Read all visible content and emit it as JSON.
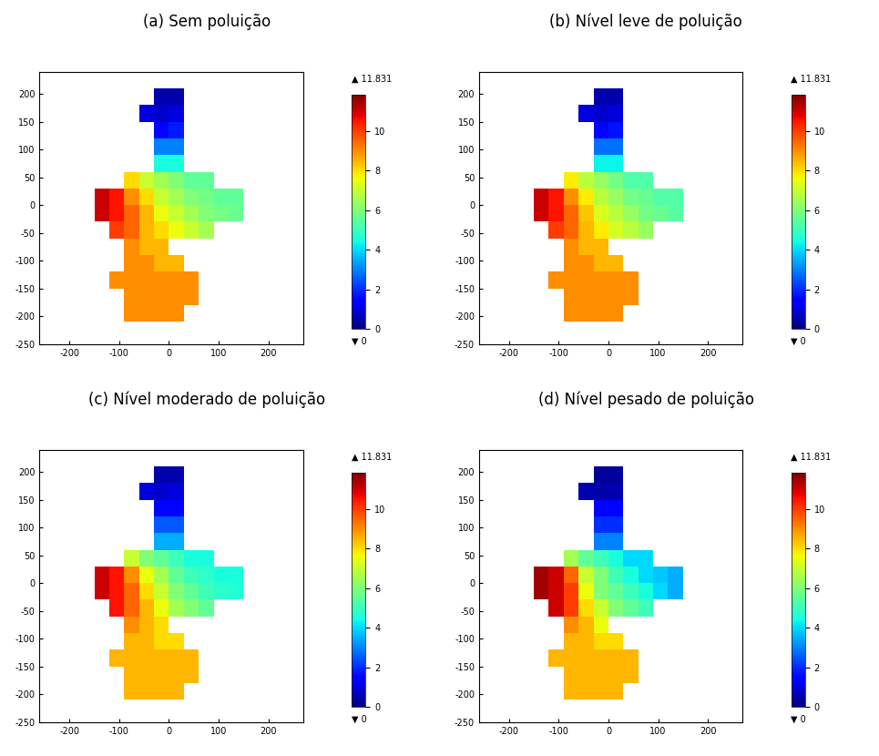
{
  "chart_data": [
    {
      "type": "heatmap",
      "title": "(a) Sem poluição",
      "xlim": [
        -260,
        270
      ],
      "ylim": [
        -250,
        240
      ],
      "xticks": [
        -200,
        -100,
        0,
        100,
        200
      ],
      "yticks": [
        -250,
        -200,
        -150,
        -100,
        -50,
        0,
        50,
        100,
        150,
        200
      ],
      "x_edges": [
        -150,
        -120,
        -90,
        -60,
        -30,
        0,
        30,
        60,
        90,
        120,
        150
      ],
      "y_edges": [
        -210,
        -180,
        -150,
        -120,
        -90,
        -60,
        -30,
        0,
        30,
        60,
        90,
        120,
        150,
        180,
        210
      ],
      "cells": [
        [
          null,
          null,
          9,
          9,
          9,
          9,
          null,
          null,
          null,
          null
        ],
        [
          null,
          null,
          9,
          9,
          9,
          9,
          9,
          null,
          null,
          null
        ],
        [
          null,
          9,
          9,
          9,
          9,
          9,
          9,
          null,
          null,
          null
        ],
        [
          null,
          null,
          9,
          9,
          8.5,
          8.5,
          null,
          null,
          null,
          null
        ],
        [
          null,
          null,
          9,
          8.5,
          8.5,
          null,
          null,
          null,
          null,
          null
        ],
        [
          null,
          10,
          9.5,
          8.5,
          8,
          7.5,
          7,
          6.5,
          null,
          null
        ],
        [
          11,
          10.5,
          9.5,
          8.5,
          7.5,
          7,
          6.5,
          6,
          5.8,
          5.6
        ],
        [
          11,
          10.5,
          9,
          8,
          7,
          6.5,
          6,
          5.8,
          5.5,
          5.5
        ],
        [
          null,
          null,
          8,
          7,
          6.5,
          6,
          5.5,
          5.5,
          null,
          null
        ],
        [
          null,
          null,
          null,
          null,
          4.5,
          4.5,
          null,
          null,
          null,
          null
        ],
        [
          null,
          null,
          null,
          null,
          3,
          3,
          null,
          null,
          null,
          null
        ],
        [
          null,
          null,
          null,
          null,
          1.5,
          1.8,
          null,
          null,
          null,
          null
        ],
        [
          null,
          null,
          null,
          1,
          0.8,
          1,
          null,
          null,
          null,
          null
        ],
        [
          null,
          null,
          null,
          null,
          0.5,
          0.5,
          null,
          null,
          null,
          null
        ]
      ],
      "color_range": [
        0,
        11.831
      ],
      "color_ticks": [
        0,
        2,
        4,
        6,
        8,
        10
      ],
      "max_label": "▲ 11.831",
      "min_label": "▼ 0"
    },
    {
      "type": "heatmap",
      "title": "(b) Nível leve de poluição",
      "xlim": [
        -260,
        270
      ],
      "ylim": [
        -250,
        240
      ],
      "xticks": [
        -200,
        -100,
        0,
        100,
        200
      ],
      "yticks": [
        -250,
        -200,
        -150,
        -100,
        -50,
        0,
        50,
        100,
        150,
        200
      ],
      "x_edges": [
        -150,
        -120,
        -90,
        -60,
        -30,
        0,
        30,
        60,
        90,
        120,
        150
      ],
      "y_edges": [
        -210,
        -180,
        -150,
        -120,
        -90,
        -60,
        -30,
        0,
        30,
        60,
        90,
        120,
        150,
        180,
        210
      ],
      "cells": [
        [
          null,
          null,
          9,
          9,
          9,
          9,
          null,
          null,
          null,
          null
        ],
        [
          null,
          null,
          9,
          9,
          9,
          9,
          9,
          null,
          null,
          null
        ],
        [
          null,
          9,
          9,
          9,
          9,
          9,
          9,
          null,
          null,
          null
        ],
        [
          null,
          null,
          9,
          9,
          8.5,
          8.5,
          null,
          null,
          null,
          null
        ],
        [
          null,
          null,
          9,
          8.5,
          8.5,
          null,
          null,
          null,
          null,
          null
        ],
        [
          null,
          10,
          9.5,
          8.5,
          7.8,
          7.2,
          6.8,
          6.3,
          null,
          null
        ],
        [
          11,
          10.5,
          9.5,
          8.3,
          7.3,
          6.8,
          6.3,
          5.8,
          5.6,
          5.4
        ],
        [
          11,
          10.5,
          9,
          7.8,
          6.8,
          6.3,
          5.8,
          5.6,
          5.3,
          5.3
        ],
        [
          null,
          null,
          7.8,
          6.8,
          6.3,
          5.8,
          5.3,
          5.3,
          null,
          null
        ],
        [
          null,
          null,
          null,
          null,
          4.3,
          4.3,
          null,
          null,
          null,
          null
        ],
        [
          null,
          null,
          null,
          null,
          2.8,
          2.8,
          null,
          null,
          null,
          null
        ],
        [
          null,
          null,
          null,
          null,
          1.5,
          1.7,
          null,
          null,
          null,
          null
        ],
        [
          null,
          null,
          null,
          1,
          0.8,
          1,
          null,
          null,
          null,
          null
        ],
        [
          null,
          null,
          null,
          null,
          0.5,
          0.5,
          null,
          null,
          null,
          null
        ]
      ],
      "color_range": [
        0,
        11.831
      ],
      "color_ticks": [
        0,
        2,
        4,
        6,
        8,
        10
      ],
      "max_label": "▲ 11.831",
      "min_label": "▼ 0"
    },
    {
      "type": "heatmap",
      "title": "(c) Nível moderado de poluição",
      "xlim": [
        -260,
        270
      ],
      "ylim": [
        -250,
        240
      ],
      "xticks": [
        -200,
        -100,
        0,
        100,
        200
      ],
      "yticks": [
        -250,
        -200,
        -150,
        -100,
        -50,
        0,
        50,
        100,
        150,
        200
      ],
      "x_edges": [
        -150,
        -120,
        -90,
        -60,
        -30,
        0,
        30,
        60,
        90,
        120,
        150
      ],
      "y_edges": [
        -210,
        -180,
        -150,
        -120,
        -90,
        -60,
        -30,
        0,
        30,
        60,
        90,
        120,
        150,
        180,
        210
      ],
      "cells": [
        [
          null,
          null,
          8.5,
          8.5,
          8.5,
          8.5,
          null,
          null,
          null,
          null
        ],
        [
          null,
          null,
          8.5,
          8.5,
          8.5,
          8.5,
          8.5,
          null,
          null,
          null
        ],
        [
          null,
          8.5,
          8.5,
          8.5,
          8.5,
          8.5,
          8.5,
          null,
          null,
          null
        ],
        [
          null,
          null,
          8.5,
          8.5,
          8,
          8,
          null,
          null,
          null,
          null
        ],
        [
          null,
          null,
          9,
          8.5,
          8,
          null,
          null,
          null,
          null,
          null
        ],
        [
          null,
          10.5,
          9.5,
          8.5,
          7.5,
          6.5,
          6,
          5.5,
          null,
          null
        ],
        [
          11,
          10.5,
          9.5,
          8,
          7,
          6,
          5.5,
          5,
          4.8,
          4.6
        ],
        [
          11,
          10.5,
          9,
          7.5,
          6.5,
          5.5,
          5,
          4.8,
          4.5,
          4.5
        ],
        [
          null,
          null,
          7,
          6,
          5.5,
          5,
          4.5,
          4.5,
          null,
          null
        ],
        [
          null,
          null,
          null,
          null,
          3.5,
          3.5,
          null,
          null,
          null,
          null
        ],
        [
          null,
          null,
          null,
          null,
          2.5,
          2.5,
          null,
          null,
          null,
          null
        ],
        [
          null,
          null,
          null,
          null,
          1.5,
          1.5,
          null,
          null,
          null,
          null
        ],
        [
          null,
          null,
          null,
          1,
          0.8,
          1,
          null,
          null,
          null,
          null
        ],
        [
          null,
          null,
          null,
          null,
          0.5,
          0.5,
          null,
          null,
          null,
          null
        ]
      ],
      "color_range": [
        0,
        11.831
      ],
      "color_ticks": [
        0,
        2,
        4,
        6,
        8,
        10
      ],
      "max_label": "▲ 11.831",
      "min_label": "▼ 0"
    },
    {
      "type": "heatmap",
      "title": "(d) Nível pesado de poluição",
      "xlim": [
        -260,
        270
      ],
      "ylim": [
        -250,
        240
      ],
      "xticks": [
        -200,
        -100,
        0,
        100,
        200
      ],
      "yticks": [
        -250,
        -200,
        -150,
        -100,
        -50,
        0,
        50,
        100,
        150,
        200
      ],
      "x_edges": [
        -150,
        -120,
        -90,
        -60,
        -30,
        0,
        30,
        60,
        90,
        120,
        150
      ],
      "y_edges": [
        -210,
        -180,
        -150,
        -120,
        -90,
        -60,
        -30,
        0,
        30,
        60,
        90,
        120,
        150,
        180,
        210
      ],
      "cells": [
        [
          null,
          null,
          8.5,
          8.5,
          8.5,
          8.5,
          null,
          null,
          null,
          null
        ],
        [
          null,
          null,
          8.5,
          8.5,
          8.5,
          8.5,
          8.5,
          null,
          null,
          null
        ],
        [
          null,
          8.5,
          8.5,
          8.5,
          8.5,
          8.5,
          8.5,
          null,
          null,
          null
        ],
        [
          null,
          null,
          8.5,
          8.5,
          8,
          8,
          null,
          null,
          null,
          null
        ],
        [
          null,
          null,
          9,
          8.5,
          7.5,
          null,
          null,
          null,
          null,
          null
        ],
        [
          null,
          11,
          10,
          8,
          7,
          6,
          5.5,
          5,
          null,
          null
        ],
        [
          11.5,
          11,
          10,
          7.5,
          6,
          5.5,
          5,
          4.5,
          4,
          3.5
        ],
        [
          11.5,
          11,
          9.5,
          7,
          6,
          5,
          4.5,
          4,
          3.8,
          3.5
        ],
        [
          null,
          null,
          6.5,
          5.5,
          5,
          4.5,
          4,
          4,
          null,
          null
        ],
        [
          null,
          null,
          null,
          null,
          3,
          3,
          null,
          null,
          null,
          null
        ],
        [
          null,
          null,
          null,
          null,
          2,
          2,
          null,
          null,
          null,
          null
        ],
        [
          null,
          null,
          null,
          null,
          1.5,
          1.5,
          null,
          null,
          null,
          null
        ],
        [
          null,
          null,
          null,
          0.5,
          0.5,
          0.5,
          null,
          null,
          null,
          null
        ],
        [
          null,
          null,
          null,
          null,
          0.3,
          0.3,
          null,
          null,
          null,
          null
        ]
      ],
      "color_range": [
        0,
        11.831
      ],
      "color_ticks": [
        0,
        2,
        4,
        6,
        8,
        10
      ],
      "max_label": "▲ 11.831",
      "min_label": "▼ 0"
    }
  ]
}
